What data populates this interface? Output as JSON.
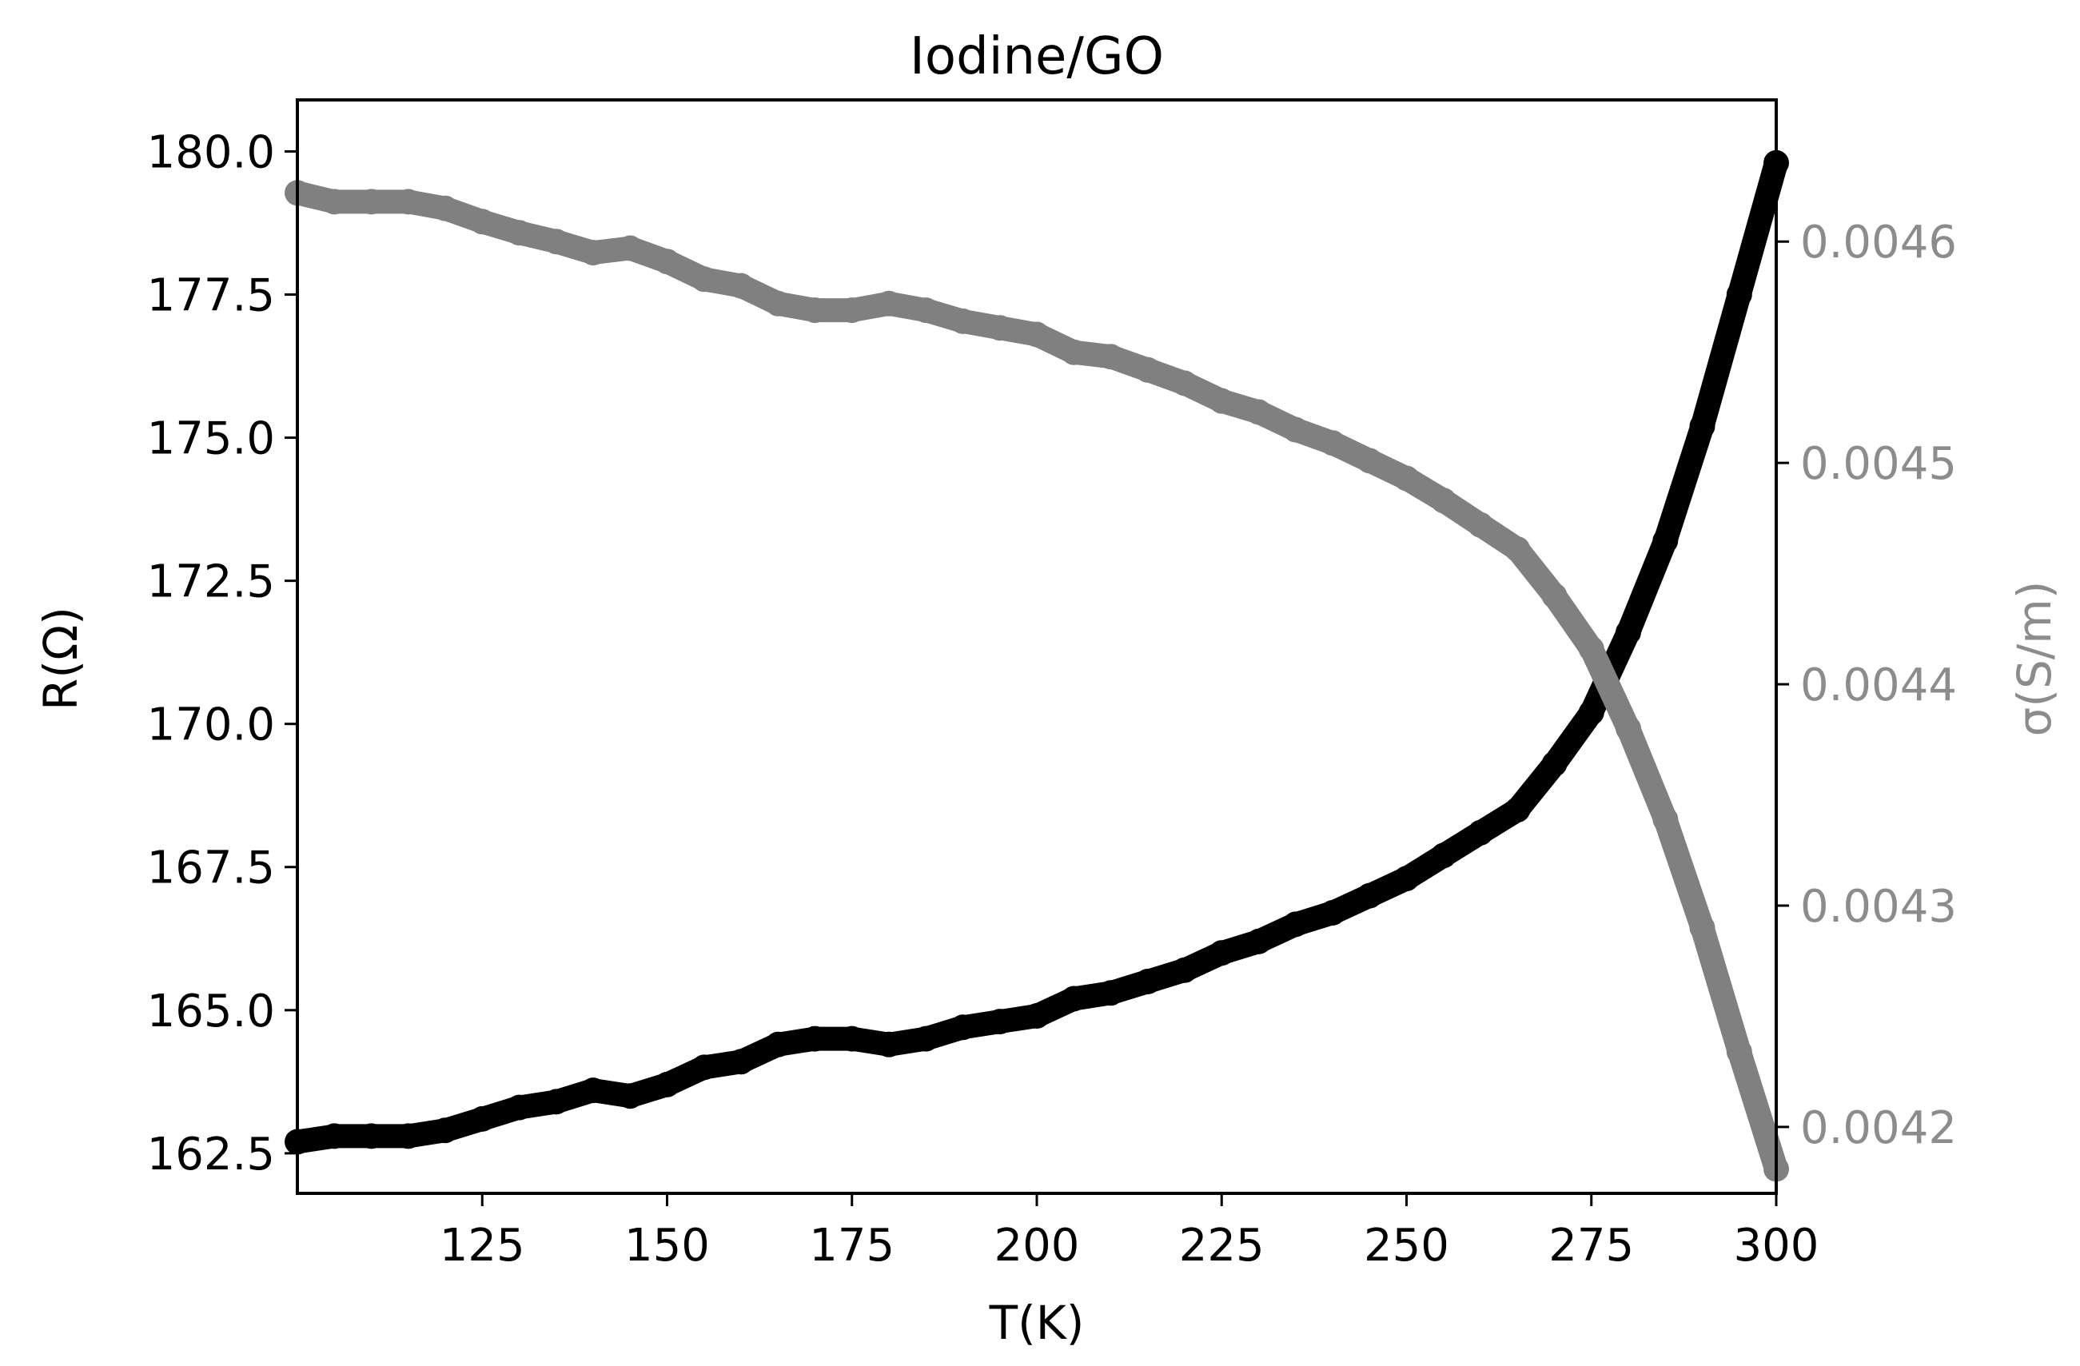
{
  "chart_data": {
    "type": "line",
    "title": "Iodine/GO",
    "xlabel": "T(K)",
    "ylabel": "R(Ω)",
    "y2label": "σ(S/m)",
    "xlim": [
      100,
      300
    ],
    "ylim": [
      161.8,
      180.9
    ],
    "y2lim": [
      0.00417,
      0.004664
    ],
    "x_ticks": [
      125,
      150,
      175,
      200,
      225,
      250,
      275,
      300
    ],
    "x_tick_labels": [
      "125",
      "150",
      "175",
      "200",
      "225",
      "250",
      "275",
      "300"
    ],
    "y_ticks": [
      162.5,
      165.0,
      167.5,
      170.0,
      172.5,
      175.0,
      177.5,
      180.0
    ],
    "y_tick_labels": [
      "162.5",
      "165.0",
      "167.5",
      "170.0",
      "172.5",
      "175.0",
      "177.5",
      "180.0"
    ],
    "y2_ticks": [
      0.0042,
      0.0043,
      0.0044,
      0.0045,
      0.0046
    ],
    "y2_tick_labels": [
      "0.0042",
      "0.0043",
      "0.0044",
      "0.0045",
      "0.0046"
    ],
    "grid": false,
    "legend": "none",
    "colors": {
      "resistance": "#000000",
      "conductivity": "#808080",
      "right_axis": "#8c8c8c"
    },
    "series": [
      {
        "axis": "left",
        "x": [
          100,
          105,
          110,
          115,
          120,
          125,
          130,
          135,
          140,
          145,
          150,
          155,
          160,
          165,
          170,
          175,
          180,
          185,
          190,
          195,
          200,
          205,
          210,
          215,
          220,
          225,
          230,
          235,
          240,
          245,
          250,
          255,
          260,
          265,
          270,
          275,
          280,
          285,
          290,
          295,
          300
        ],
        "values": [
          162.7,
          162.8,
          162.8,
          162.8,
          162.9,
          163.1,
          163.3,
          163.4,
          163.6,
          163.5,
          163.7,
          164.0,
          164.1,
          164.4,
          164.5,
          164.5,
          164.4,
          164.5,
          164.7,
          164.8,
          164.9,
          165.2,
          165.3,
          165.5,
          165.7,
          166.0,
          166.2,
          166.5,
          166.7,
          167.0,
          167.3,
          167.7,
          168.1,
          168.5,
          169.3,
          170.2,
          171.6,
          173.2,
          175.2,
          177.5,
          179.8
        ]
      },
      {
        "axis": "right",
        "x": [
          100,
          105,
          110,
          115,
          120,
          125,
          130,
          135,
          140,
          145,
          150,
          155,
          160,
          165,
          170,
          175,
          180,
          185,
          190,
          195,
          200,
          205,
          210,
          215,
          220,
          225,
          230,
          235,
          240,
          245,
          250,
          255,
          260,
          265,
          270,
          275,
          280,
          285,
          290,
          295,
          300
        ],
        "values": [
          0.004622,
          0.004618,
          0.004618,
          0.004618,
          0.004615,
          0.004609,
          0.004604,
          0.0046,
          0.004595,
          0.004597,
          0.004591,
          0.004583,
          0.00458,
          0.004572,
          0.004569,
          0.004569,
          0.004572,
          0.004569,
          0.004564,
          0.004561,
          0.004558,
          0.00455,
          0.004548,
          0.004542,
          0.004536,
          0.004528,
          0.004523,
          0.004515,
          0.004509,
          0.004501,
          0.004493,
          0.004483,
          0.004472,
          0.004461,
          0.00444,
          0.004416,
          0.00438,
          0.004339,
          0.00429,
          0.004234,
          0.004181
        ]
      }
    ]
  }
}
